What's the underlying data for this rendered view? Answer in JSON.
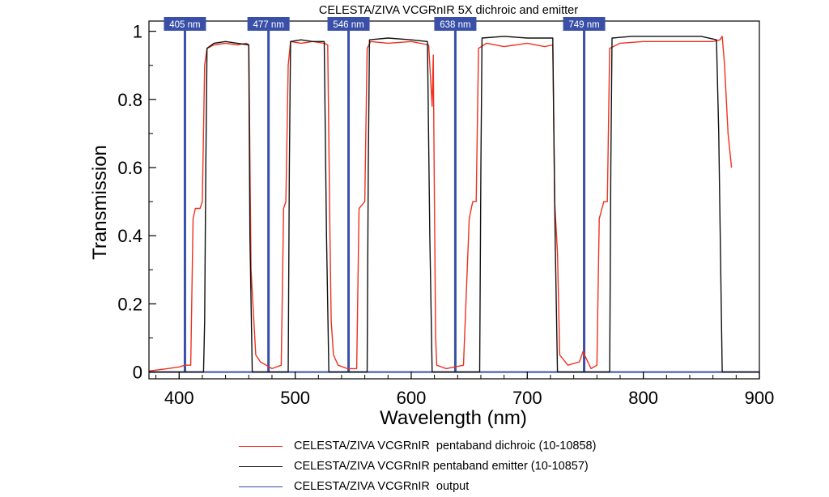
{
  "chart_data": {
    "type": "line",
    "title": "CELESTA/ZIVA VCGRnIR 5X dichroic and emitter",
    "xlabel": "Wavelength (nm)",
    "ylabel": "Transmission",
    "xlim": [
      374,
      900
    ],
    "ylim": [
      -0.02,
      1.03
    ],
    "x_ticks": [
      400,
      500,
      600,
      700,
      800,
      900
    ],
    "x_minor_step": 20,
    "y_ticks": [
      0,
      0.2,
      0.4,
      0.6,
      0.8,
      1
    ],
    "y_tick_labels": [
      "0",
      "0.2",
      "0.4",
      "0.6",
      "0.8",
      "1"
    ],
    "grid": false,
    "legend_position": "bottom",
    "series": [
      {
        "name": "CELESTA/ZIVA VCGRnIR  pentaband dichroic (10-10858)",
        "color": "#f0301e",
        "x": [
          374,
          390,
          400,
          405,
          410,
          412,
          414,
          418,
          420,
          422,
          424,
          430,
          440,
          450,
          458,
          460,
          462,
          466,
          470,
          475,
          480,
          488,
          490,
          492,
          494,
          496,
          505,
          515,
          525,
          528,
          530,
          531,
          533,
          537,
          545,
          553,
          555,
          560,
          562,
          565,
          580,
          600,
          615,
          618,
          619,
          620,
          621,
          622,
          630,
          645,
          650,
          653,
          656,
          658,
          665,
          680,
          700,
          715,
          722,
          723.6,
          726,
          728,
          735,
          745,
          748,
          755,
          760,
          762,
          766,
          769,
          771,
          780,
          800,
          830,
          860,
          866,
          868,
          870,
          873,
          876
        ],
        "y": [
          0.003,
          0.01,
          0.015,
          0.02,
          0.02,
          0.45,
          0.48,
          0.48,
          0.5,
          0.9,
          0.95,
          0.96,
          0.965,
          0.96,
          0.965,
          0.96,
          0.3,
          0.05,
          0.03,
          0.02,
          0.01,
          0.02,
          0.48,
          0.5,
          0.9,
          0.97,
          0.965,
          0.97,
          0.965,
          0.96,
          0.4,
          0.15,
          0.05,
          0.02,
          0.01,
          0.01,
          0.48,
          0.5,
          0.95,
          0.97,
          0.965,
          0.97,
          0.96,
          0.78,
          0.93,
          0.5,
          0.1,
          0.02,
          0.01,
          0.02,
          0.45,
          0.5,
          0.5,
          0.95,
          0.965,
          0.955,
          0.965,
          0.955,
          0.96,
          0.5,
          0.35,
          0.05,
          0.02,
          0.03,
          0.06,
          0.01,
          0.02,
          0.45,
          0.5,
          0.5,
          0.95,
          0.965,
          0.97,
          0.97,
          0.97,
          0.975,
          0.985,
          0.9,
          0.7,
          0.6
        ]
      },
      {
        "name": "CELESTA/ZIVA VCGRnIR pentaband emitter (10-10857)",
        "color": "#111111",
        "x": [
          374,
          421,
          422,
          423,
          424,
          430,
          440,
          450,
          460,
          461,
          463,
          494,
          495,
          496,
          505,
          515,
          525,
          527,
          529,
          562,
          563,
          564,
          580,
          600,
          614,
          616,
          618,
          659,
          660,
          661,
          680,
          700,
          722,
          724,
          726,
          771,
          772,
          773,
          790,
          820,
          850,
          863,
          865,
          868,
          900
        ],
        "y": [
          0,
          0,
          0.15,
          0.6,
          0.95,
          0.965,
          0.97,
          0.965,
          0.96,
          0.4,
          0,
          0,
          0.6,
          0.97,
          0.975,
          0.97,
          0.97,
          0.4,
          0,
          0,
          0.6,
          0.975,
          0.98,
          0.975,
          0.97,
          0.4,
          0,
          0,
          0.6,
          0.98,
          0.985,
          0.98,
          0.98,
          0.4,
          0,
          0,
          0.6,
          0.98,
          0.985,
          0.985,
          0.985,
          0.975,
          0.7,
          0,
          0
        ]
      },
      {
        "name": "CELESTA/ZIVA VCGRnIR  output",
        "color": "#3a50a8",
        "baseline": 0,
        "lines_nm": [
          405,
          477,
          546,
          638,
          749
        ],
        "labels": [
          "405 nm",
          "477 nm",
          "546 nm",
          "638 nm",
          "749 nm"
        ]
      }
    ]
  }
}
